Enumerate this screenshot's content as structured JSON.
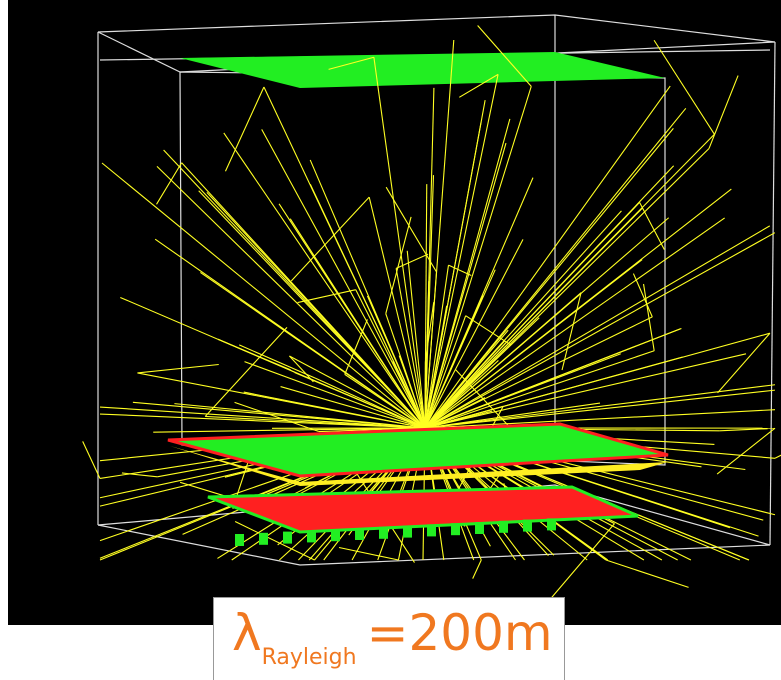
{
  "label": {
    "symbol": "λ",
    "subscript": "Rayleigh",
    "value": "=200m"
  }
}
